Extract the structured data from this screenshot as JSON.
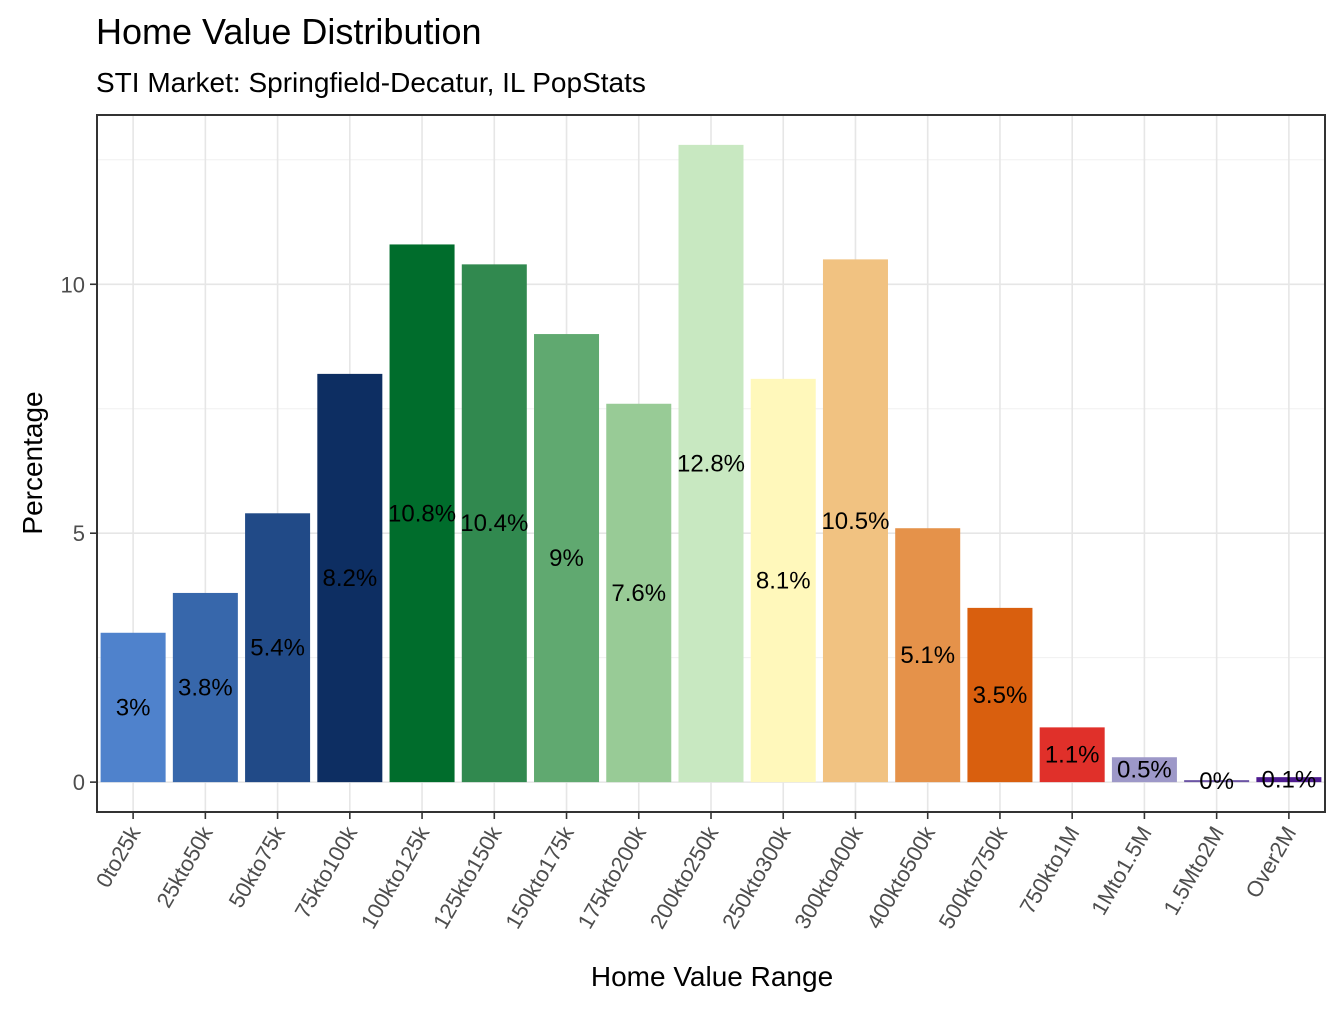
{
  "chart_data": {
    "type": "bar",
    "title": "Home Value Distribution",
    "subtitle": "STI Market: Springfield-Decatur, IL PopStats",
    "xlabel": "Home Value Range",
    "ylabel": "Percentage",
    "ylim": [
      -0.6,
      13.4
    ],
    "yticks": [
      0,
      5,
      10
    ],
    "grid": true,
    "legend": "none",
    "categories": [
      "0to25k",
      "25kto50k",
      "50kto75k",
      "75kto100k",
      "100kto125k",
      "125kto150k",
      "150kto175k",
      "175kto200k",
      "200kto250k",
      "250kto300k",
      "300kto400k",
      "400kto500k",
      "500kto750k",
      "750kto1M",
      "1Mto1.5M",
      "1.5Mto2M",
      "Over2M"
    ],
    "values": [
      3.0,
      3.8,
      5.4,
      8.2,
      10.8,
      10.4,
      9.0,
      7.6,
      12.8,
      8.1,
      10.5,
      5.1,
      3.5,
      1.1,
      0.5,
      0.04,
      0.1
    ],
    "labels": [
      "3%",
      "3.8%",
      "5.4%",
      "8.2%",
      "10.8%",
      "10.4%",
      "9%",
      "7.6%",
      "12.8%",
      "8.1%",
      "10.5%",
      "5.1%",
      "3.5%",
      "1.1%",
      "0.5%",
      "0%",
      "0.1%"
    ],
    "colors": [
      "#4f82cc",
      "#3767ab",
      "#214a87",
      "#0d2e62",
      "#006d2c",
      "#31894f",
      "#60a970",
      "#98cb96",
      "#c8e8c1",
      "#fff8bb",
      "#f1c281",
      "#e5924a",
      "#d95f0e",
      "#e0302a",
      "#9d98c8",
      "#6c55a5",
      "#4e1b8f"
    ]
  }
}
